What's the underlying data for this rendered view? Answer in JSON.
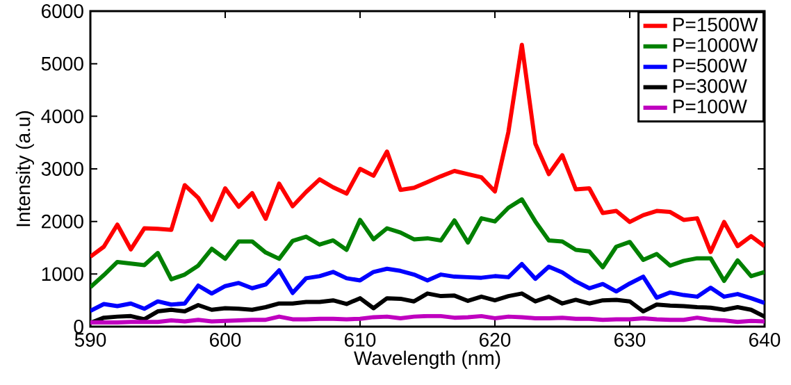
{
  "chart_data": {
    "type": "line",
    "xlabel": "Wavelength (nm)",
    "ylabel": "Intensity (a.u)",
    "x": [
      590,
      591,
      592,
      593,
      594,
      595,
      596,
      597,
      598,
      599,
      600,
      601,
      602,
      603,
      604,
      605,
      606,
      607,
      608,
      609,
      610,
      611,
      612,
      613,
      614,
      615,
      616,
      617,
      618,
      619,
      620,
      621,
      622,
      623,
      624,
      625,
      626,
      627,
      628,
      629,
      630,
      631,
      632,
      633,
      634,
      635,
      636,
      637,
      638,
      639,
      640
    ],
    "xlim": [
      590,
      640
    ],
    "xticks": [
      590,
      600,
      610,
      620,
      630,
      640
    ],
    "ylim": [
      0,
      6000
    ],
    "yticks": [
      0,
      1000,
      2000,
      3000,
      4000,
      5000,
      6000
    ],
    "grid": false,
    "legend": "top right",
    "series": [
      {
        "name": "P=1500W",
        "color": "#ff0000",
        "values": [
          1330,
          1520,
          1940,
          1470,
          1870,
          1860,
          1840,
          2690,
          2450,
          2030,
          2630,
          2280,
          2540,
          2050,
          2720,
          2290,
          2560,
          2800,
          2650,
          2530,
          3000,
          2870,
          3330,
          2600,
          2640,
          2750,
          2860,
          2960,
          2900,
          2840,
          2570,
          3700,
          5360,
          3480,
          2900,
          3260,
          2610,
          2630,
          2160,
          2200,
          1990,
          2120,
          2200,
          2180,
          2030,
          2060,
          1420,
          1990,
          1530,
          1720,
          1530
        ]
      },
      {
        "name": "P=1000W",
        "color": "#008000",
        "values": [
          750,
          980,
          1230,
          1200,
          1170,
          1400,
          900,
          990,
          1160,
          1480,
          1290,
          1620,
          1620,
          1410,
          1290,
          1630,
          1710,
          1560,
          1640,
          1460,
          2030,
          1660,
          1870,
          1790,
          1660,
          1680,
          1640,
          2020,
          1600,
          2060,
          2000,
          2260,
          2420,
          2000,
          1640,
          1620,
          1460,
          1430,
          1130,
          1520,
          1610,
          1270,
          1380,
          1160,
          1250,
          1300,
          1300,
          870,
          1260,
          960,
          1040
        ]
      },
      {
        "name": "P=500W",
        "color": "#0000ff",
        "values": [
          300,
          430,
          390,
          440,
          340,
          480,
          420,
          440,
          780,
          630,
          770,
          830,
          730,
          800,
          1070,
          640,
          920,
          960,
          1040,
          920,
          880,
          1040,
          1100,
          1060,
          990,
          880,
          990,
          950,
          940,
          930,
          960,
          940,
          1190,
          910,
          1140,
          1030,
          860,
          730,
          810,
          670,
          820,
          950,
          550,
          650,
          600,
          570,
          740,
          570,
          620,
          540,
          450
        ]
      },
      {
        "name": "P=300W",
        "color": "#000000",
        "values": [
          70,
          170,
          190,
          200,
          140,
          290,
          320,
          290,
          410,
          320,
          350,
          340,
          320,
          370,
          440,
          440,
          470,
          470,
          500,
          430,
          540,
          350,
          540,
          530,
          480,
          630,
          580,
          590,
          490,
          570,
          500,
          580,
          630,
          480,
          570,
          440,
          510,
          440,
          500,
          510,
          480,
          290,
          420,
          400,
          390,
          370,
          360,
          320,
          370,
          320,
          190
        ]
      },
      {
        "name": "P=100W",
        "color": "#bf00bf",
        "values": [
          80,
          80,
          80,
          90,
          90,
          90,
          120,
          100,
          130,
          100,
          110,
          120,
          130,
          130,
          190,
          140,
          140,
          150,
          150,
          140,
          150,
          180,
          190,
          160,
          190,
          200,
          200,
          170,
          180,
          200,
          160,
          190,
          180,
          160,
          160,
          170,
          150,
          150,
          130,
          140,
          140,
          160,
          140,
          130,
          130,
          170,
          130,
          120,
          90,
          110,
          100
        ]
      }
    ]
  }
}
